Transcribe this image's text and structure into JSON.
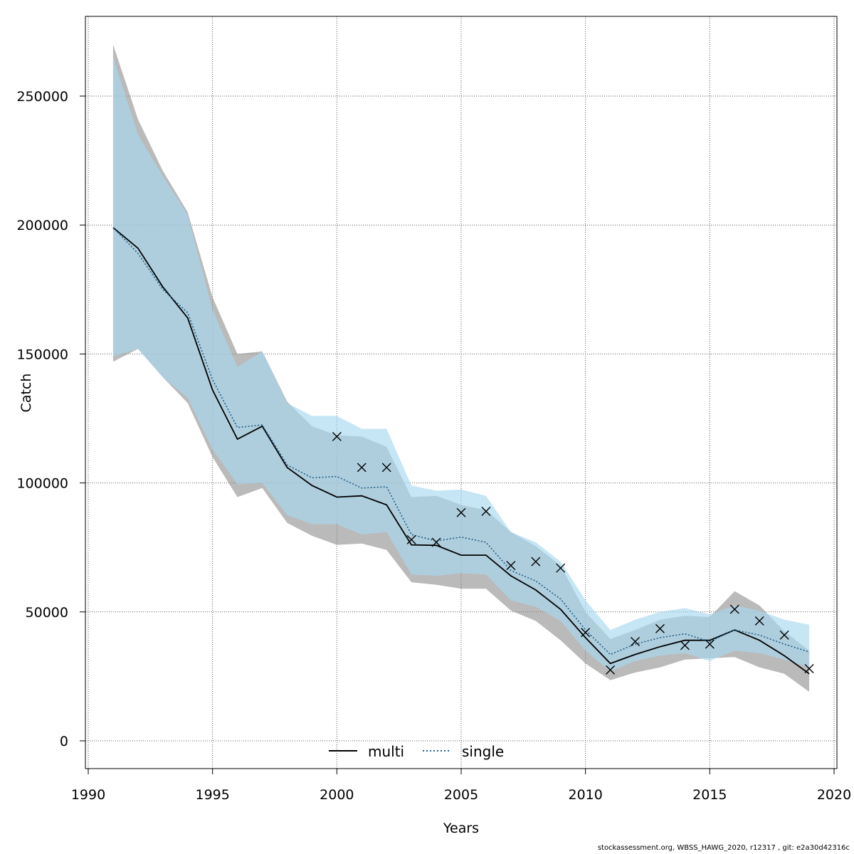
{
  "chart_data": {
    "type": "line",
    "xlabel": "Years",
    "ylabel": "Catch",
    "xlim": [
      1990,
      2020
    ],
    "ylim": [
      -10000,
      282000
    ],
    "grid": true,
    "legend_position": "bottom-center",
    "x_ticks": [
      1990,
      1995,
      2000,
      2005,
      2010,
      2015,
      2020
    ],
    "x_tick_labels": [
      "1990",
      "1995",
      "2000",
      "2005",
      "2010",
      "2015",
      "2020"
    ],
    "y_ticks": [
      0,
      50000,
      100000,
      150000,
      200000,
      250000
    ],
    "y_tick_labels": [
      "0",
      "50000",
      "100000",
      "150000",
      "200000",
      "250000"
    ],
    "x": [
      1991,
      1992,
      1993,
      1994,
      1995,
      1996,
      1997,
      1998,
      1999,
      2000,
      2001,
      2002,
      2003,
      2004,
      2005,
      2006,
      2007,
      2008,
      2009,
      2010,
      2011,
      2012,
      2013,
      2014,
      2015,
      2016,
      2017,
      2018,
      2019
    ],
    "series": [
      {
        "name": "multi",
        "color": "#000000",
        "band_color": "#8c8c8c",
        "line_style": "solid",
        "values": [
          199000,
          191000,
          176000,
          164000,
          136000,
          117000,
          122000,
          106000,
          99000,
          94500,
          95000,
          91500,
          76000,
          75800,
          72000,
          72000,
          64000,
          58500,
          51000,
          40000,
          30000,
          33500,
          36500,
          39000,
          39000,
          43000,
          39000,
          33000,
          26000
        ],
        "lower": [
          147000,
          152000,
          141000,
          131000,
          110000,
          94500,
          98000,
          84500,
          79500,
          76000,
          76500,
          74000,
          61500,
          60500,
          59000,
          59000,
          50500,
          46500,
          39000,
          30000,
          23500,
          26500,
          28500,
          31500,
          32000,
          32500,
          28500,
          26000,
          19000
        ],
        "upper": [
          270000,
          241000,
          221000,
          205000,
          172000,
          150000,
          151000,
          131500,
          122000,
          118500,
          118000,
          114000,
          94500,
          95000,
          91500,
          89500,
          81000,
          75500,
          68000,
          50000,
          39500,
          43000,
          47000,
          48500,
          48000,
          58000,
          52500,
          42500,
          35000
        ]
      },
      {
        "name": "single",
        "color": "#1f5f8b",
        "band_color": "#a9d8f0",
        "line_style": "dotted",
        "values": [
          199000,
          189000,
          175000,
          166000,
          140000,
          121500,
          122500,
          107000,
          102000,
          102500,
          98000,
          98500,
          80000,
          77500,
          79000,
          77000,
          66000,
          62000,
          55000,
          43000,
          33500,
          37500,
          40000,
          41500,
          38500,
          43000,
          41000,
          37500,
          34500
        ],
        "lower": [
          149000,
          152000,
          141000,
          133000,
          113000,
          99500,
          100000,
          87500,
          84000,
          84000,
          80000,
          81000,
          64500,
          64000,
          65000,
          64500,
          54500,
          52000,
          46500,
          35000,
          27000,
          31000,
          33000,
          34000,
          31000,
          35000,
          34000,
          31500,
          28500
        ],
        "upper": [
          265000,
          235000,
          219000,
          204000,
          167000,
          145000,
          151000,
          131000,
          126000,
          126000,
          121000,
          121000,
          99000,
          97000,
          97500,
          95000,
          81000,
          77000,
          69500,
          54500,
          43000,
          47000,
          50000,
          51500,
          49000,
          52500,
          50500,
          47000,
          45000
        ]
      }
    ],
    "observations": {
      "marker": "x",
      "x": [
        2000,
        2001,
        2002,
        2003,
        2004,
        2005,
        2006,
        2007,
        2008,
        2009,
        2010,
        2011,
        2012,
        2013,
        2014,
        2015,
        2016,
        2017,
        2018,
        2019
      ],
      "y": [
        118000,
        106000,
        106000,
        78000,
        77000,
        88500,
        89000,
        68000,
        69500,
        67000,
        42000,
        27500,
        38500,
        43500,
        37000,
        37500,
        51000,
        46500,
        41000,
        28000
      ]
    },
    "legend": [
      "multi",
      "single"
    ]
  },
  "footer_text": "stockassessment.org, WBSS_HAWG_2020, r12317 , git: e2a30d42316c"
}
